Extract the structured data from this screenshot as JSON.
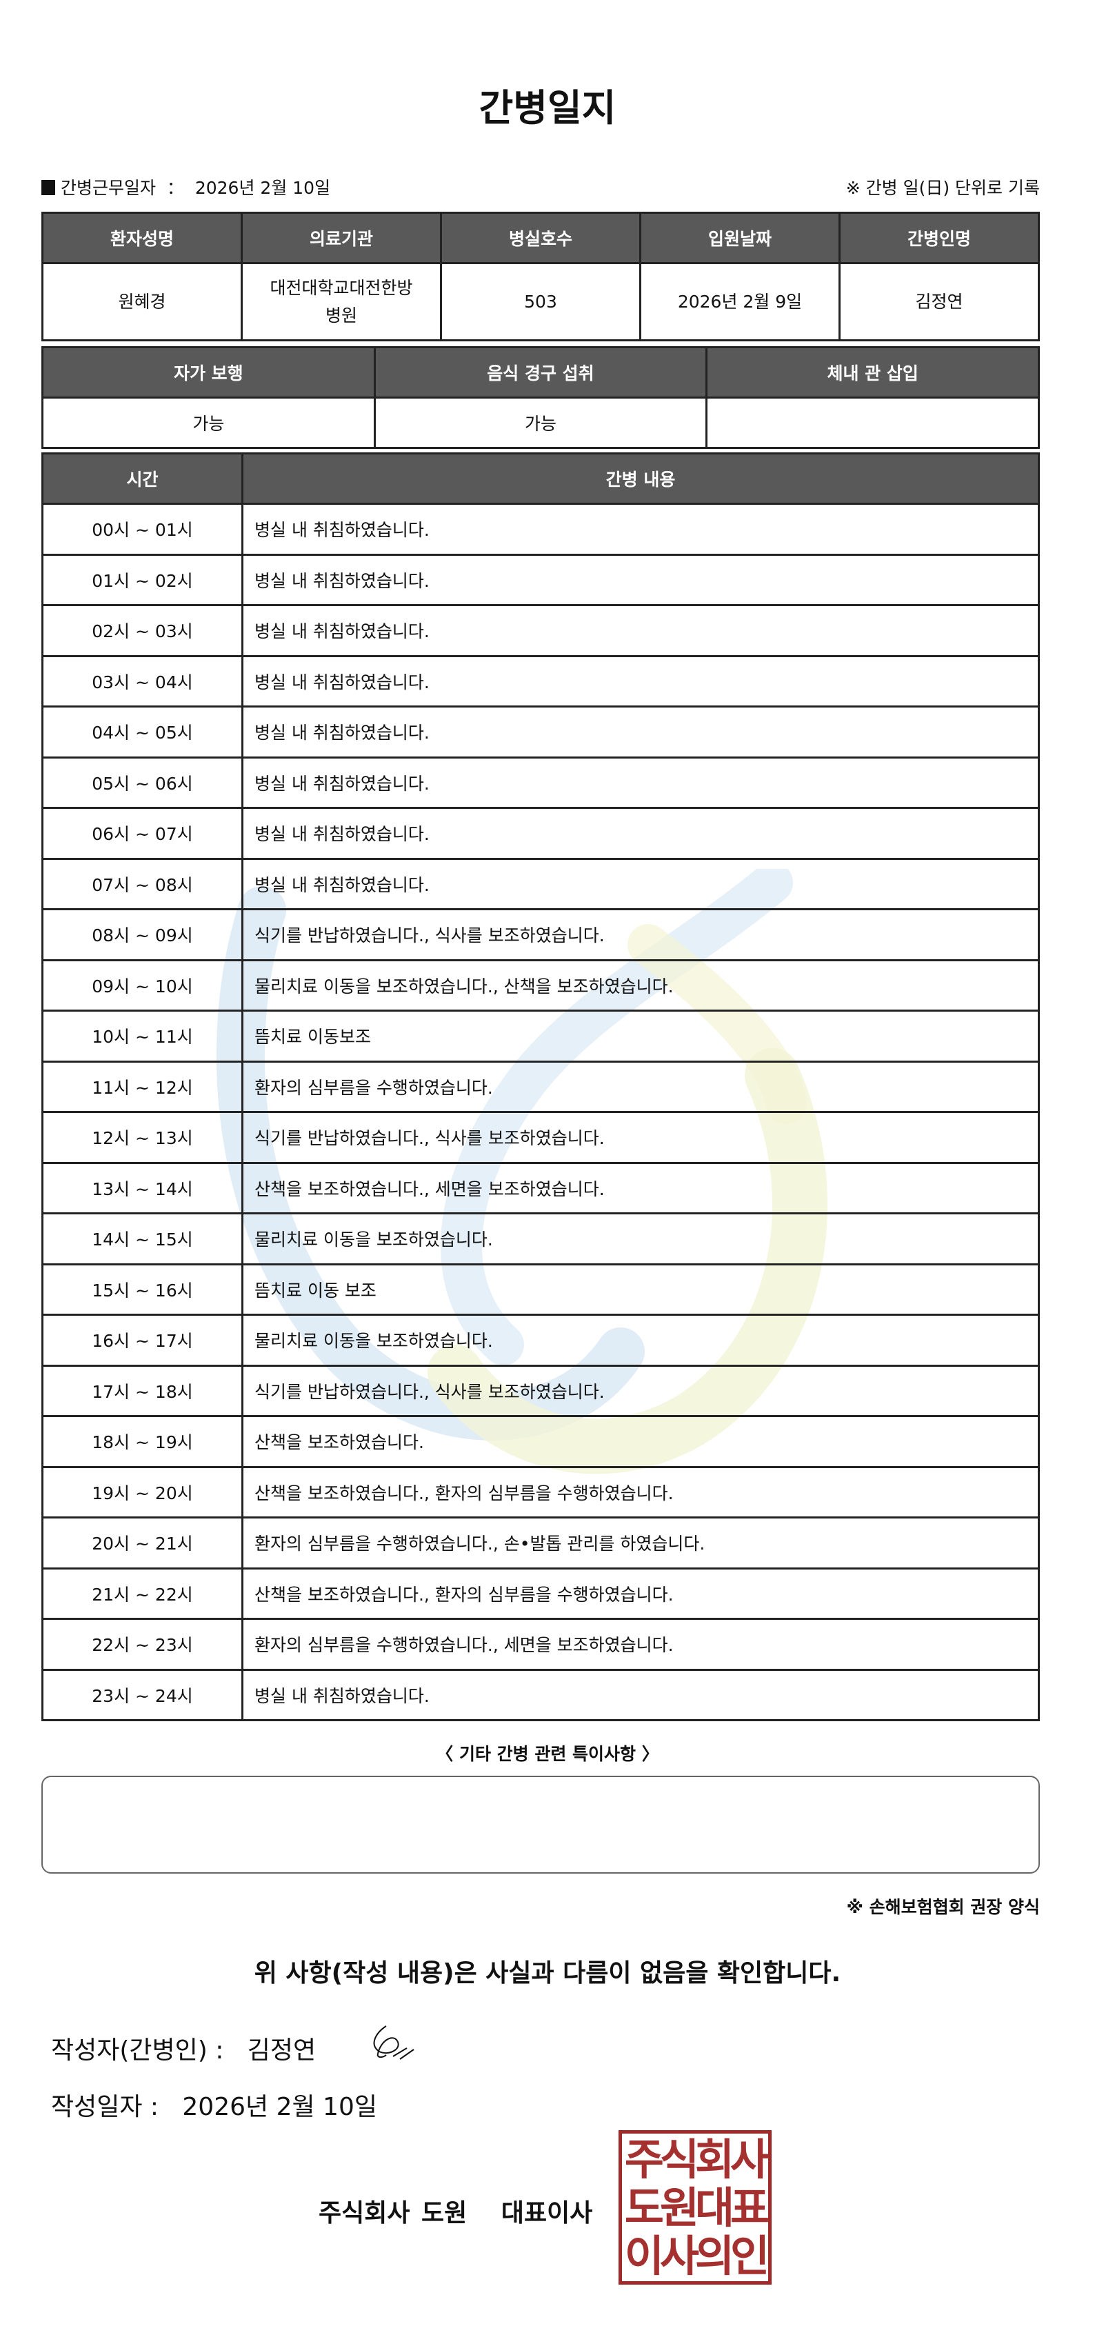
{
  "title": "간병일지",
  "header": {
    "work_date_label": "간병근무일자",
    "work_date_sep": "：",
    "work_date": "2026년 2월 10일",
    "unit_note": "※ 간병 일(日) 단위로 기록"
  },
  "patient_table": {
    "headers": [
      "환자성명",
      "의료기관",
      "병실호수",
      "입원날짜",
      "간병인명"
    ],
    "values": [
      "원혜경",
      "대전대학교대전한방병원",
      "503",
      "2026년 2월 9일",
      "김정연"
    ]
  },
  "status_table": {
    "headers": [
      "자가 보행",
      "음식 경구 섭취",
      "체내 관 삽입"
    ],
    "values": [
      "가능",
      "가능",
      ""
    ]
  },
  "log_table": {
    "headers": [
      "시간",
      "간병 내용"
    ],
    "rows": [
      {
        "time": "00시 ~ 01시",
        "content": "병실 내 취침하였습니다."
      },
      {
        "time": "01시 ~ 02시",
        "content": "병실 내 취침하였습니다."
      },
      {
        "time": "02시 ~ 03시",
        "content": "병실 내 취침하였습니다."
      },
      {
        "time": "03시 ~ 04시",
        "content": "병실 내 취침하였습니다."
      },
      {
        "time": "04시 ~ 05시",
        "content": "병실 내 취침하였습니다."
      },
      {
        "time": "05시 ~ 06시",
        "content": "병실 내 취침하였습니다."
      },
      {
        "time": "06시 ~ 07시",
        "content": "병실 내 취침하였습니다."
      },
      {
        "time": "07시 ~ 08시",
        "content": "병실 내 취침하였습니다."
      },
      {
        "time": "08시 ~ 09시",
        "content": "식기를 반납하였습니다., 식사를 보조하였습니다."
      },
      {
        "time": "09시 ~ 10시",
        "content": "물리치료 이동을 보조하였습니다., 산책을 보조하였습니다."
      },
      {
        "time": "10시 ~ 11시",
        "content": "뜸치료 이동보조"
      },
      {
        "time": "11시 ~ 12시",
        "content": "환자의 심부름을 수행하였습니다."
      },
      {
        "time": "12시 ~ 13시",
        "content": "식기를 반납하였습니다., 식사를 보조하였습니다."
      },
      {
        "time": "13시 ~ 14시",
        "content": "산책을 보조하였습니다., 세면을 보조하였습니다."
      },
      {
        "time": "14시 ~ 15시",
        "content": "물리치료 이동을 보조하였습니다."
      },
      {
        "time": "15시 ~ 16시",
        "content": "뜸치료 이동 보조"
      },
      {
        "time": "16시 ~ 17시",
        "content": "물리치료 이동을 보조하였습니다."
      },
      {
        "time": "17시 ~ 18시",
        "content": "식기를 반납하였습니다., 식사를 보조하였습니다."
      },
      {
        "time": "18시 ~ 19시",
        "content": "산책을 보조하였습니다."
      },
      {
        "time": "19시 ~ 20시",
        "content": "산책을 보조하였습니다., 환자의 심부름을 수행하였습니다."
      },
      {
        "time": "20시 ~ 21시",
        "content": "환자의 심부름을 수행하였습니다., 손•발톱 관리를 하였습니다."
      },
      {
        "time": "21시 ~ 22시",
        "content": "산책을 보조하였습니다., 환자의 심부름을 수행하였습니다."
      },
      {
        "time": "22시 ~ 23시",
        "content": "환자의 심부름을 수행하였습니다., 세면을 보조하였습니다."
      },
      {
        "time": "23시 ~ 24시",
        "content": "병실 내 취침하였습니다."
      }
    ]
  },
  "notes": {
    "title": "〈 기타 간병 관련 특이사항 〉",
    "value": ""
  },
  "recommend_note": "※ 손해보험협회 권장 양식",
  "confirm_text": "위 사항(작성 내용)은 사실과 다름이 없음을 확인합니다.",
  "writer": {
    "label": "작성자(간병인) :",
    "name": "김정연"
  },
  "written_date": {
    "label": "작성일자 :",
    "value": "2026년 2월 10일"
  },
  "company": "주식회사 도원   대표이사",
  "stamp": {
    "lines": [
      "주식회사",
      "도원대표",
      "이사의인"
    ],
    "color": "#a02a2a"
  },
  "colors": {
    "header_bg": "#595959",
    "watermark_blue": "#d6e6f3",
    "watermark_yellow": "#f3f4d6"
  }
}
